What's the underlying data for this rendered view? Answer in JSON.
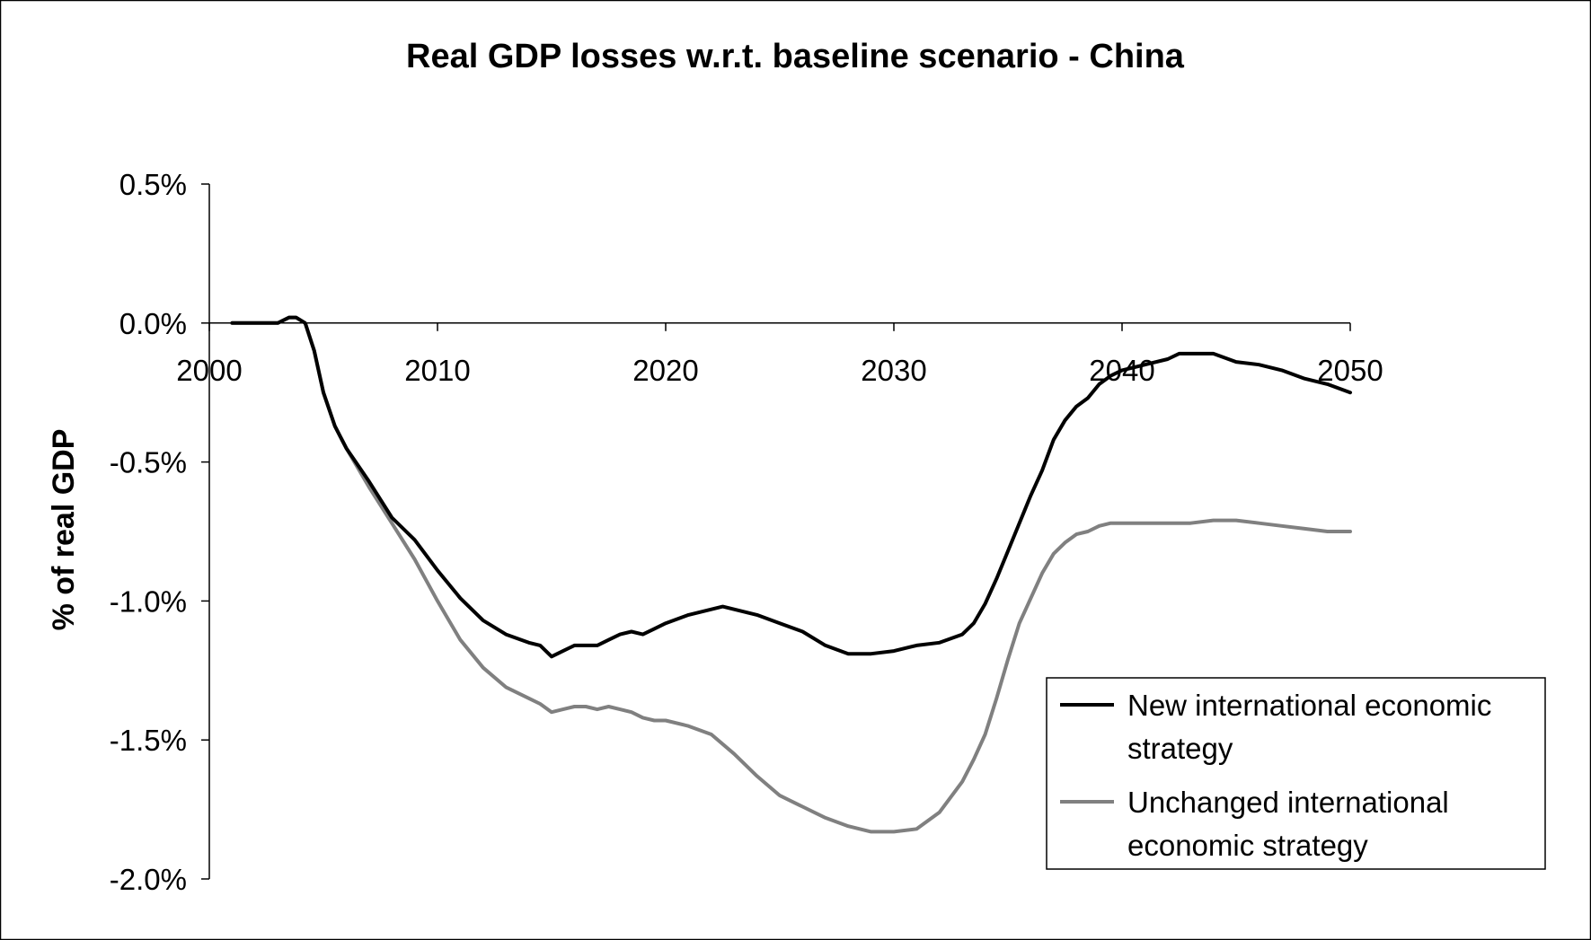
{
  "chart_data": {
    "type": "line",
    "title": "Real GDP losses w.r.t. baseline scenario - China",
    "xlabel": "",
    "ylabel": "% of real GDP",
    "xlim": [
      2000,
      2050
    ],
    "ylim": [
      -0.02,
      0.005
    ],
    "x_ticks": [
      "2000",
      "2010",
      "2020",
      "2030",
      "2040",
      "2050"
    ],
    "y_ticks": [
      "0.5%",
      "0.0%",
      "-0.5%",
      "-1.0%",
      "-1.5%",
      "-2.0%"
    ],
    "grid": false,
    "legend_position": "bottom-right",
    "series": [
      {
        "name": "New international economic strategy",
        "color": "#000000",
        "x": [
          2001,
          2002,
          2003,
          2003.5,
          2003.8,
          2004.2,
          2004.6,
          2005,
          2005.5,
          2006,
          2007,
          2008,
          2009,
          2010,
          2011,
          2012,
          2013,
          2014,
          2014.5,
          2015,
          2015.5,
          2016,
          2016.5,
          2017,
          2017.5,
          2018,
          2018.5,
          2019,
          2019.5,
          2020,
          2021,
          2022,
          2022.5,
          2023,
          2024,
          2025,
          2026,
          2027,
          2028,
          2029,
          2030,
          2031,
          2032,
          2033,
          2033.5,
          2034,
          2034.5,
          2035,
          2035.5,
          2036,
          2036.5,
          2037,
          2037.5,
          2038,
          2038.5,
          2039,
          2039.5,
          2040,
          2041,
          2042,
          2042.5,
          2043,
          2043.5,
          2044,
          2045,
          2046,
          2047,
          2048,
          2049,
          2050
        ],
        "values": [
          0,
          0,
          0,
          0.0002,
          0.0002,
          0,
          -0.001,
          -0.0025,
          -0.0037,
          -0.0045,
          -0.0057,
          -0.007,
          -0.0078,
          -0.0089,
          -0.0099,
          -0.0107,
          -0.0112,
          -0.0115,
          -0.0116,
          -0.012,
          -0.0118,
          -0.0116,
          -0.0116,
          -0.0116,
          -0.0114,
          -0.0112,
          -0.0111,
          -0.0112,
          -0.011,
          -0.0108,
          -0.0105,
          -0.0103,
          -0.0102,
          -0.0103,
          -0.0105,
          -0.0108,
          -0.0111,
          -0.0116,
          -0.0119,
          -0.0119,
          -0.0118,
          -0.0116,
          -0.0115,
          -0.0112,
          -0.0108,
          -0.0101,
          -0.0092,
          -0.0082,
          -0.0072,
          -0.0062,
          -0.0053,
          -0.0042,
          -0.0035,
          -0.003,
          -0.0027,
          -0.0022,
          -0.0019,
          -0.0017,
          -0.0015,
          -0.0013,
          -0.0011,
          -0.0011,
          -0.0011,
          -0.0011,
          -0.0014,
          -0.0015,
          -0.0017,
          -0.002,
          -0.0022,
          -0.0025
        ]
      },
      {
        "name": "Unchanged international economic strategy",
        "color": "#808080",
        "x": [
          2001,
          2002,
          2003,
          2003.5,
          2003.8,
          2004.2,
          2004.6,
          2005,
          2005.5,
          2006,
          2007,
          2008,
          2009,
          2010,
          2011,
          2012,
          2013,
          2014,
          2014.5,
          2015,
          2015.5,
          2016,
          2016.5,
          2017,
          2017.5,
          2018,
          2018.5,
          2019,
          2019.5,
          2020,
          2021,
          2022,
          2023,
          2024,
          2025,
          2026,
          2027,
          2028,
          2029,
          2030,
          2031,
          2032,
          2033,
          2033.5,
          2034,
          2034.5,
          2035,
          2035.5,
          2036,
          2036.5,
          2037,
          2037.5,
          2038,
          2038.5,
          2039,
          2039.5,
          2040,
          2041,
          2042,
          2043,
          2044,
          2045,
          2046,
          2047,
          2048,
          2049,
          2050
        ],
        "values": [
          0,
          0,
          0,
          0.0002,
          0.0002,
          0,
          -0.001,
          -0.0025,
          -0.0037,
          -0.0045,
          -0.0059,
          -0.0072,
          -0.0085,
          -0.01,
          -0.0114,
          -0.0124,
          -0.0131,
          -0.0135,
          -0.0137,
          -0.014,
          -0.0139,
          -0.0138,
          -0.0138,
          -0.0139,
          -0.0138,
          -0.0139,
          -0.014,
          -0.0142,
          -0.0143,
          -0.0143,
          -0.0145,
          -0.0148,
          -0.0155,
          -0.0163,
          -0.017,
          -0.0174,
          -0.0178,
          -0.0181,
          -0.0183,
          -0.0183,
          -0.0182,
          -0.0176,
          -0.0165,
          -0.0157,
          -0.0148,
          -0.0135,
          -0.0121,
          -0.0108,
          -0.0099,
          -0.009,
          -0.0083,
          -0.0079,
          -0.0076,
          -0.0075,
          -0.0073,
          -0.0072,
          -0.0072,
          -0.0072,
          -0.0072,
          -0.0072,
          -0.0071,
          -0.0071,
          -0.0072,
          -0.0073,
          -0.0074,
          -0.0075,
          -0.0075
        ]
      }
    ]
  }
}
